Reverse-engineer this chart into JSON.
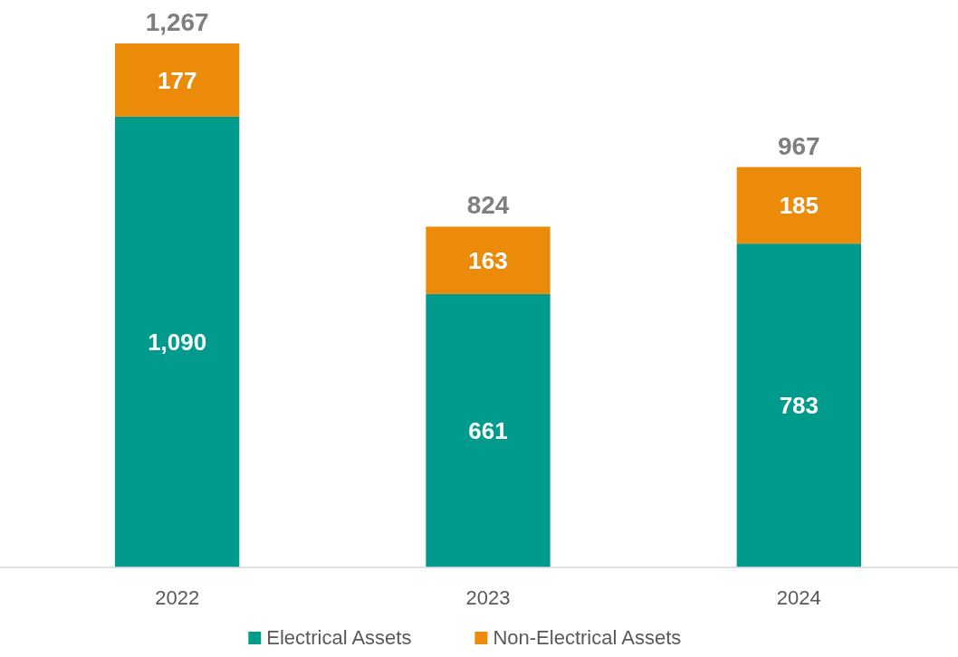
{
  "chart_data": {
    "type": "bar",
    "stacked": true,
    "categories": [
      "2022",
      "2023",
      "2024"
    ],
    "series": [
      {
        "name": "Electrical Assets",
        "color": "#009b8d",
        "values": [
          1090,
          661,
          783
        ],
        "value_labels": [
          "1,090",
          "661",
          "783"
        ]
      },
      {
        "name": "Non-Electrical Assets",
        "color": "#ec8b0a",
        "values": [
          177,
          163,
          185
        ],
        "value_labels": [
          "177",
          "163",
          "185"
        ]
      }
    ],
    "totals": [
      "1,267",
      "824",
      "967"
    ],
    "legend": "bottom"
  }
}
